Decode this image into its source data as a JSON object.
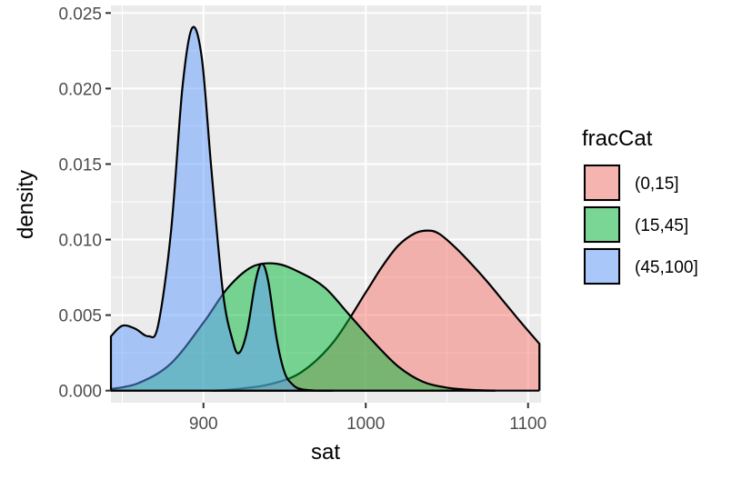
{
  "chart_data": {
    "type": "area",
    "xlabel": "sat",
    "ylabel": "density",
    "xlim": [
      843,
      1108
    ],
    "ylim": [
      -0.0008,
      0.0255
    ],
    "x_ticks": [
      900,
      1000,
      1100
    ],
    "y_ticks": [
      0.0,
      0.005,
      0.01,
      0.015,
      0.02,
      0.025
    ],
    "x_tick_labels": [
      "900",
      "1000",
      "1100"
    ],
    "y_tick_labels": [
      "0.000",
      "0.005",
      "0.010",
      "0.015",
      "0.020",
      "0.025"
    ],
    "grid": true,
    "legend": {
      "title": "fracCat",
      "placement": "right",
      "entries": [
        "(0,15]",
        "(15,45]",
        "(45,100]"
      ]
    },
    "series": [
      {
        "name": "(0,15]",
        "color": "#F8766D",
        "x": [
          905,
          920,
          940,
          960,
          980,
          1000,
          1010,
          1020,
          1030,
          1038,
          1045,
          1055,
          1065,
          1075,
          1085,
          1095,
          1107
        ],
        "y": [
          0.0,
          0.0001,
          0.0004,
          0.0012,
          0.0032,
          0.0065,
          0.0082,
          0.0096,
          0.0104,
          0.0106,
          0.0104,
          0.0095,
          0.0084,
          0.0072,
          0.0059,
          0.0046,
          0.0031
        ]
      },
      {
        "name": "(15,45]",
        "color": "#00BA38",
        "x": [
          843,
          860,
          880,
          900,
          915,
          930,
          945,
          960,
          975,
          990,
          1005,
          1020,
          1035,
          1050,
          1065,
          1080
        ],
        "y": [
          0.0001,
          0.0005,
          0.0018,
          0.0045,
          0.0068,
          0.0082,
          0.0084,
          0.0078,
          0.0068,
          0.005,
          0.0032,
          0.0016,
          0.0006,
          0.0002,
          5e-05,
          0.0
        ]
      },
      {
        "name": "(45,100]",
        "color": "#619CFF",
        "x": [
          843,
          850,
          858,
          866,
          872,
          880,
          887,
          893,
          899,
          905,
          912,
          918,
          922,
          927,
          932,
          936,
          940,
          945,
          950,
          955,
          960,
          970,
          980
        ],
        "y": [
          0.0036,
          0.0043,
          0.0041,
          0.0036,
          0.0043,
          0.0105,
          0.02,
          0.024,
          0.022,
          0.0145,
          0.0065,
          0.0033,
          0.0025,
          0.004,
          0.0072,
          0.0084,
          0.0072,
          0.0035,
          0.0012,
          0.0004,
          0.0001,
          0.0,
          0.0
        ]
      }
    ]
  }
}
